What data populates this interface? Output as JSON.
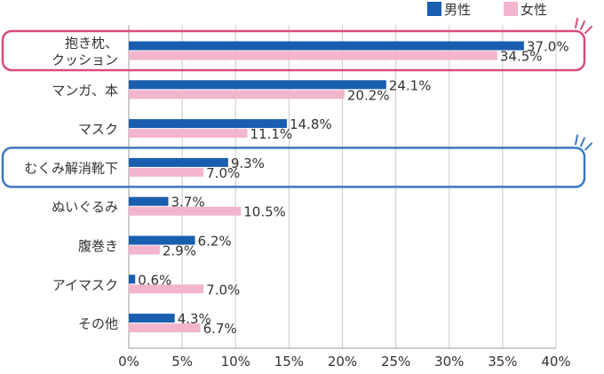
{
  "chart_data": {
    "type": "bar",
    "orientation": "horizontal",
    "categories": [
      "抱き枕、\nクッション",
      "マンガ、本",
      "マスク",
      "むくみ解消靴下",
      "ぬいぐるみ",
      "腹巻き",
      "アイマスク",
      "その他"
    ],
    "series": [
      {
        "name": "男性",
        "color": "#1a5eb0",
        "values": [
          37.0,
          24.1,
          14.8,
          9.3,
          3.7,
          6.2,
          0.6,
          4.3
        ],
        "labels": [
          "37.0%",
          "24.1%",
          "14.8%",
          "9.3%",
          "3.7%",
          "6.2%",
          "0.6%",
          "4.3%"
        ]
      },
      {
        "name": "女性",
        "color": "#f2b5cd",
        "values": [
          34.5,
          20.2,
          11.1,
          7.0,
          10.5,
          2.9,
          7.0,
          6.7
        ],
        "labels": [
          "34.5%",
          "20.2%",
          "11.1%",
          "7.0%",
          "10.5%",
          "2.9%",
          "7.0%",
          "6.7%"
        ]
      }
    ],
    "xlim": [
      0,
      40
    ],
    "xticks": [
      0,
      5,
      10,
      15,
      20,
      25,
      30,
      35,
      40
    ],
    "xtick_labels": [
      "0%",
      "5%",
      "10%",
      "15%",
      "20%",
      "25%",
      "30%",
      "35%",
      "40%"
    ],
    "grid": "vertical",
    "legend": "top-right",
    "highlights": [
      {
        "category_index": 0,
        "color": "#d94b7f"
      },
      {
        "category_index": 3,
        "color": "#3a78bf"
      }
    ],
    "title": "",
    "xlabel": "",
    "ylabel": ""
  }
}
